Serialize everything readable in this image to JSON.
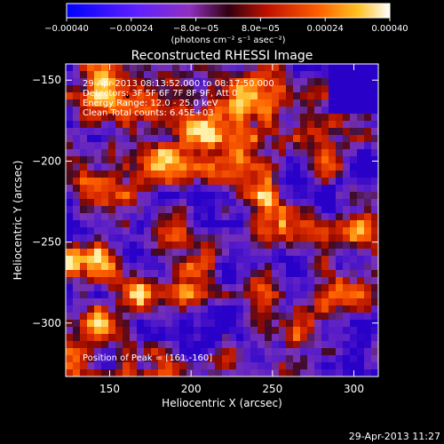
{
  "chart_data": {
    "type": "heatmap",
    "title": "Reconstructed RHESSI Image",
    "xlabel": "Heliocentric X (arcsec)",
    "ylabel": "Heliocentric Y (arcsec)",
    "xlim": [
      123,
      315
    ],
    "ylim": [
      -333,
      -140
    ],
    "x_ticks": [
      150,
      200,
      250,
      300
    ],
    "x_tick_labels": [
      "150",
      "200",
      "250",
      "300"
    ],
    "y_ticks": [
      -150,
      -200,
      -250,
      -300
    ],
    "y_tick_labels": [
      "−150",
      "−200",
      "−250",
      "−300"
    ],
    "colorbar": {
      "range": [
        -0.0004,
        0.0004
      ],
      "tick_values": [
        -0.0004,
        -0.00024,
        -8e-05,
        8e-05,
        0.00024,
        0.0004
      ],
      "tick_labels": [
        "−0.00040",
        "−0.00024",
        "−8.0e−05",
        "8.0e−05",
        "0.00024",
        "0.00040"
      ],
      "unit_label": "(photons cm⁻² s⁻¹ asec⁻²)"
    },
    "annotations": [
      "29-Apr-2013 08:13:52.000 to 08:17:50.000",
      "Detectors: 3F 5F 6F 7F 8F 9F, Att 0",
      "Energy Range: 12.0 - 25.0 keV",
      "Clean    Total counts: 6.45E+03"
    ],
    "peak_label": "Position of Peak = [161,-160]",
    "peak": {
      "x": 161,
      "y": -160
    },
    "grid": false,
    "colors": {
      "background": "#000000",
      "text": "#ffffff"
    }
  },
  "timestamp": "29-Apr-2013 11:27"
}
